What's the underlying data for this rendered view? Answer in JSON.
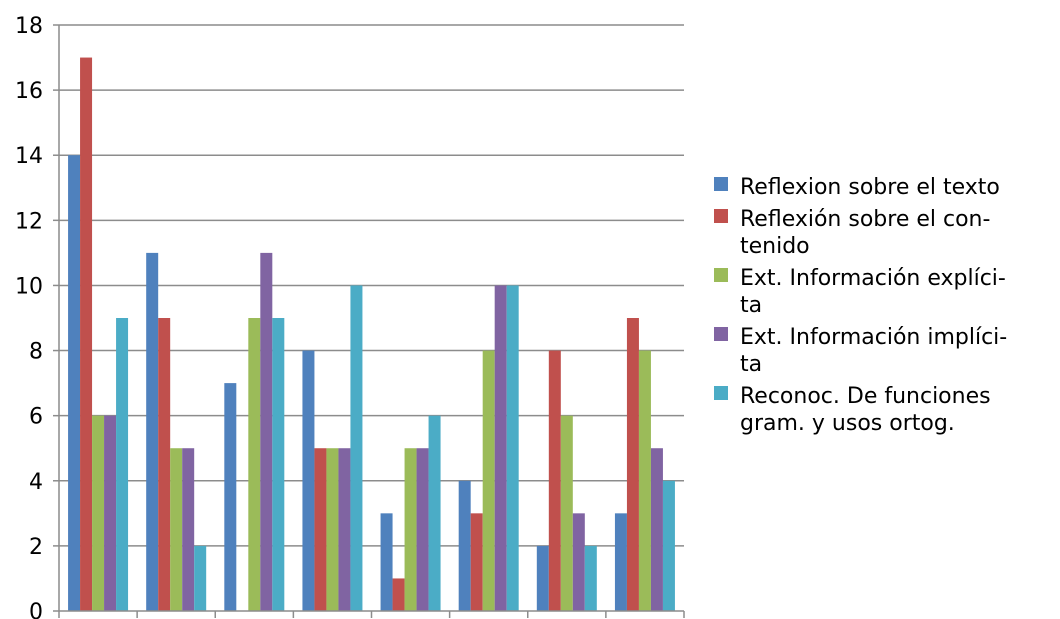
{
  "chart_data": {
    "type": "bar",
    "title": "",
    "xlabel": "",
    "ylabel": "",
    "ylim": [
      0,
      18
    ],
    "yticks": [
      0,
      2,
      4,
      6,
      8,
      10,
      12,
      14,
      16,
      18
    ],
    "grid": true,
    "legend_position": "right",
    "categories": [
      "",
      "",
      "",
      "",
      "",
      "",
      "",
      ""
    ],
    "series": [
      {
        "name": "Reflexion sobre el texto",
        "legend_lines": [
          "Reflexion sobre el texto"
        ],
        "color": "#4F81BD",
        "values": [
          14,
          11,
          7,
          8,
          3,
          4,
          2,
          3
        ]
      },
      {
        "name": "Reflexión sobre el contenido",
        "legend_lines": [
          "Reflexión sobre el con-",
          "tenido"
        ],
        "color": "#C0504D",
        "values": [
          17,
          9,
          0,
          5,
          1,
          3,
          8,
          9
        ]
      },
      {
        "name": "Ext. Información explícita",
        "legend_lines": [
          "Ext. Información explíci-",
          "ta"
        ],
        "color": "#9BBB59",
        "values": [
          6,
          5,
          9,
          5,
          5,
          8,
          6,
          8
        ]
      },
      {
        "name": "Ext. Información implícita",
        "legend_lines": [
          "Ext. Información implíci-",
          "ta"
        ],
        "color": "#8064A2",
        "values": [
          6,
          5,
          11,
          5,
          5,
          10,
          3,
          5
        ]
      },
      {
        "name": "Reconoc. De funciones gram. y usos ortog.",
        "legend_lines": [
          "Reconoc. De funciones",
          "gram. y usos ortog."
        ],
        "color": "#4BACC6",
        "values": [
          9,
          2,
          9,
          10,
          6,
          10,
          2,
          4
        ]
      }
    ]
  }
}
